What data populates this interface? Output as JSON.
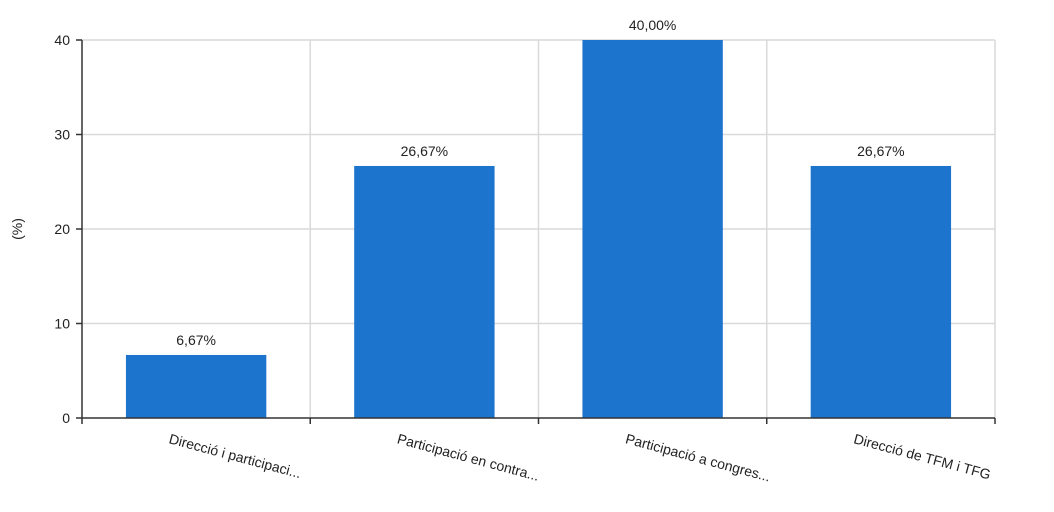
{
  "chart_data": {
    "type": "bar",
    "title": "",
    "xlabel": "",
    "ylabel": "(%)",
    "ylim": [
      0,
      40
    ],
    "yticks": [
      "0",
      "10",
      "20",
      "30",
      "40"
    ],
    "grid": true,
    "categories": [
      "Direcció i participaci...",
      "Participació en contra...",
      "Participació a congres...",
      "Direcció de TFM i TFG"
    ],
    "values": [
      6.67,
      26.67,
      40.0,
      26.67
    ],
    "value_labels": [
      "6,67%",
      "26,67%",
      "40,00%",
      "26,67%"
    ],
    "bar_color": "#1c74cc",
    "grid_color": "#d9d9d9",
    "axis_color": "#333333"
  }
}
